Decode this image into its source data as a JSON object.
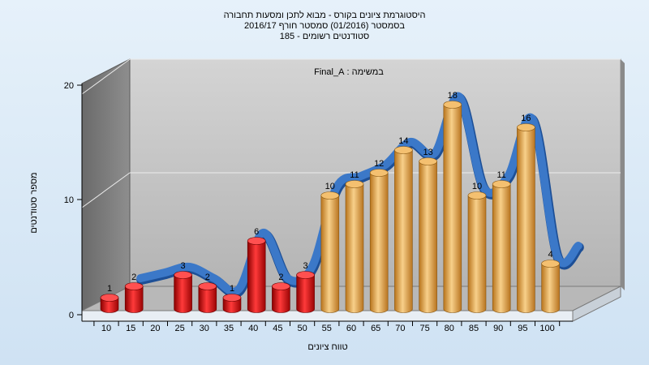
{
  "chart_data": {
    "type": "bar",
    "title_lines": [
      "היסטוגרמת ציונים בקורס - מבוא לתכן ומסעות תחבורה",
      "בסמסטר  (01/2016)  סמסטר חורף 2016/17",
      "סטודנטים רשומים - 185"
    ],
    "legend_label": "במשימה : Final_A",
    "xlabel": "טווח ציונים",
    "ylabel": "מספר סטודנטים",
    "ylim": [
      0,
      20
    ],
    "yticks": [
      0,
      10,
      20
    ],
    "categories": [
      "10",
      "15",
      "20",
      "25",
      "30",
      "35",
      "40",
      "45",
      "50",
      "55",
      "60",
      "65",
      "70",
      "75",
      "80",
      "85",
      "90",
      "95",
      "100"
    ],
    "series": [
      {
        "values": [
          1,
          2,
          null,
          3,
          2,
          1,
          6,
          2,
          3,
          10,
          11,
          12,
          14,
          13,
          18,
          10,
          11,
          16,
          4
        ],
        "pass_from": "55"
      }
    ],
    "grid": true,
    "colors": {
      "fail_bar": "#e01818",
      "pass_bar": "#e8a84a",
      "trend_ribbon": "#3b78c8",
      "back_wall": "#c4c4c4",
      "side_wall": "#7c7c7c",
      "floor": "#b8b8b8"
    }
  }
}
